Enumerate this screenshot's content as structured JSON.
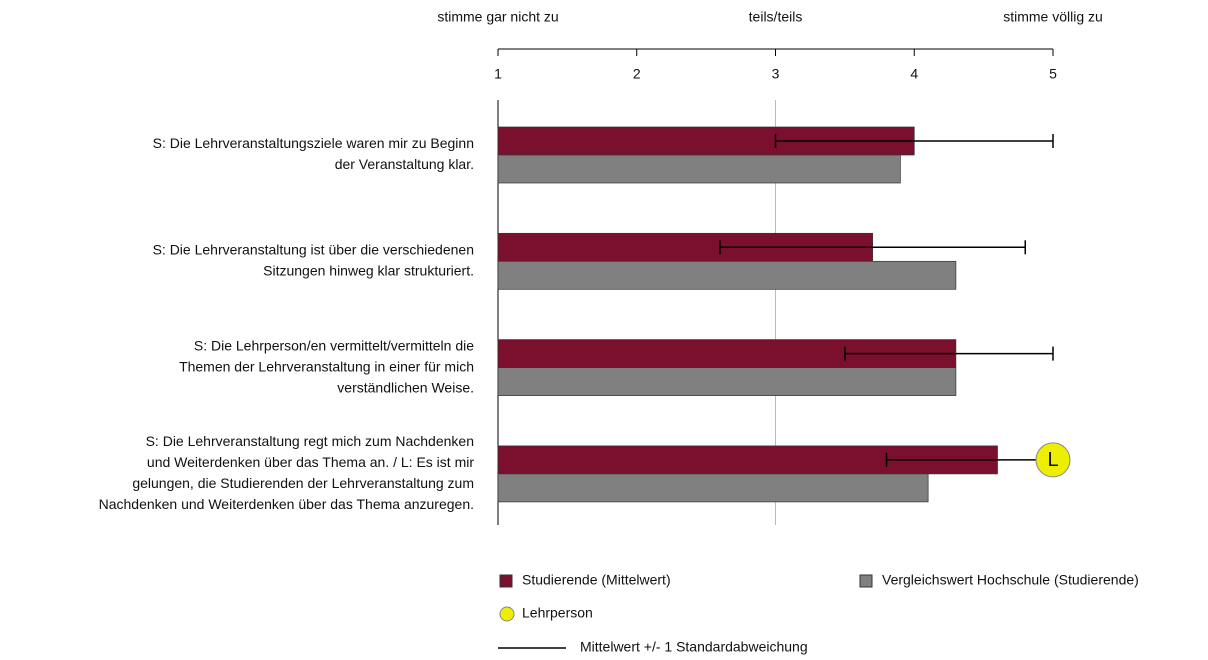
{
  "chart_data": {
    "type": "bar",
    "orientation": "horizontal",
    "scale_labels": [
      {
        "value": 1,
        "label": "stimme gar nicht zu"
      },
      {
        "value": 3,
        "label": "teils/teils"
      },
      {
        "value": 5,
        "label": "stimme völlig zu"
      }
    ],
    "categories": [
      [
        "S: Die Lehrveranstaltungsziele waren mir zu Beginn",
        "der Veranstaltung klar."
      ],
      [
        "S: Die Lehrveranstaltung ist über die verschiedenen",
        "Sitzungen hinweg klar strukturiert."
      ],
      [
        "S: Die Lehrperson/en vermittelt/vermitteln die",
        "Themen der Lehrveranstaltung in einer für mich",
        "verständlichen Weise."
      ],
      [
        "S: Die Lehrveranstaltung regt mich zum Nachdenken",
        "und Weiterdenken über das Thema an. / L: Es ist mir",
        "gelungen, die Studierenden der Lehrveranstaltung zum",
        "Nachdenken und Weiterdenken über das Thema anzuregen."
      ]
    ],
    "series": [
      {
        "name": "Studierende (Mittelwert)",
        "color": "#7b0f2e",
        "values": [
          4.0,
          3.7,
          4.3,
          4.6
        ],
        "errors": [
          1.0,
          1.1,
          0.8,
          0.8
        ]
      },
      {
        "name": "Vergleichswert Hochschule (Studierende)",
        "color": "#808080",
        "values": [
          3.9,
          4.3,
          4.3,
          4.1
        ]
      }
    ],
    "lehrperson": {
      "name": "Lehrperson",
      "label": "L",
      "color": "#eeee00",
      "values": [
        null,
        null,
        null,
        5
      ]
    },
    "error_label": "Mittelwert +/- 1 Standardabweichung",
    "xlim": [
      1,
      5
    ],
    "xticks": [
      1,
      2,
      3,
      4,
      5
    ],
    "gridline_at": 3
  }
}
